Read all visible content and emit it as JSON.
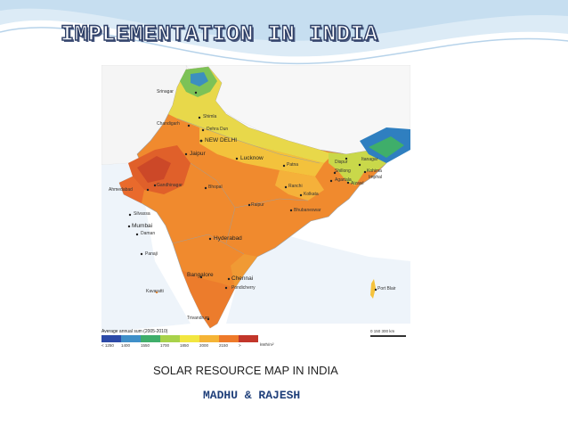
{
  "slide": {
    "title": "IMPLEMENTATION IN INDIA",
    "caption": "SOLAR RESOURCE MAP IN INDIA",
    "authors": "MADHU & RAJESH"
  },
  "map": {
    "cities": [
      {
        "key": "srinagar",
        "label": "Srinagar"
      },
      {
        "key": "shimla",
        "label": "Shimla"
      },
      {
        "key": "chandigarh",
        "label": "Chandigarh"
      },
      {
        "key": "dehradun",
        "label": "Dehra Dun"
      },
      {
        "key": "newdelhi",
        "label": "NEW DELHI"
      },
      {
        "key": "jaipur",
        "label": "Jaipur"
      },
      {
        "key": "lucknow",
        "label": "Lucknow"
      },
      {
        "key": "patna",
        "label": "Patna"
      },
      {
        "key": "dispur",
        "label": "Dispur"
      },
      {
        "key": "itanagar",
        "label": "Itanagar"
      },
      {
        "key": "shillong",
        "label": "Shillong"
      },
      {
        "key": "kohima",
        "label": "Kohima"
      },
      {
        "key": "imphal",
        "label": "Imphal"
      },
      {
        "key": "agartala",
        "label": "Agartala"
      },
      {
        "key": "aizawl",
        "label": "Aizawl"
      },
      {
        "key": "gandhinagar",
        "label": "Gandhinagar"
      },
      {
        "key": "ahmedabad",
        "label": "Ahmedabad"
      },
      {
        "key": "bhopal",
        "label": "Bhopal"
      },
      {
        "key": "ranchi",
        "label": "Ranchi"
      },
      {
        "key": "kolkata",
        "label": "Kolkata"
      },
      {
        "key": "raipur",
        "label": "Raipur"
      },
      {
        "key": "silvassa",
        "label": "Silvassa"
      },
      {
        "key": "daman",
        "label": "Daman"
      },
      {
        "key": "mumbai",
        "label": "Mumbai"
      },
      {
        "key": "bhubaneswar",
        "label": "Bhubaneswar"
      },
      {
        "key": "hyderabad",
        "label": "Hyderabad"
      },
      {
        "key": "panaji",
        "label": "Panaji"
      },
      {
        "key": "bangalore",
        "label": "Bangalore"
      },
      {
        "key": "chennai",
        "label": "Chennai"
      },
      {
        "key": "pondicherry",
        "label": "Pondicherry"
      },
      {
        "key": "kavaratti",
        "label": "Kavaratti"
      },
      {
        "key": "trivandrum",
        "label": "Trivandrum"
      },
      {
        "key": "portblair",
        "label": "Port Blair"
      }
    ],
    "legend": {
      "title": "Average annual sum (2005-2010)",
      "unit": "kWh/m²",
      "ticks": [
        "< 1250",
        "1400",
        "1550",
        "1700",
        "1850",
        "2000",
        "2150",
        ">"
      ],
      "colors": [
        "#2c4aa8",
        "#3f8fc8",
        "#3fae6a",
        "#a8d24a",
        "#f2e640",
        "#f5b436",
        "#ee7a2a",
        "#c2362a"
      ]
    },
    "scale": {
      "label": "0      150    300 km"
    }
  }
}
